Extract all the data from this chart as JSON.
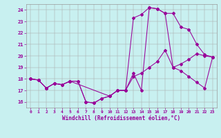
{
  "xlabel": "Windchill (Refroidissement éolien,°C)",
  "bg_color": "#c8f0f0",
  "line_color": "#990099",
  "xlim": [
    -0.5,
    23.5
  ],
  "ylim": [
    15.5,
    24.5
  ],
  "xticks": [
    0,
    1,
    2,
    3,
    4,
    5,
    6,
    7,
    8,
    9,
    10,
    11,
    12,
    13,
    14,
    15,
    16,
    17,
    18,
    19,
    20,
    21,
    22,
    23
  ],
  "yticks": [
    16,
    17,
    18,
    19,
    20,
    21,
    22,
    23,
    24
  ],
  "line1": {
    "x": [
      0,
      1,
      2,
      3,
      4,
      5,
      6,
      7,
      8,
      9,
      10,
      11,
      12,
      13,
      14,
      15,
      16,
      17,
      18,
      19,
      20,
      21,
      22,
      23
    ],
    "y": [
      18.0,
      17.9,
      17.2,
      17.6,
      17.5,
      17.8,
      17.8,
      16.0,
      15.9,
      16.3,
      16.5,
      17.0,
      17.0,
      18.5,
      17.0,
      24.2,
      24.1,
      23.7,
      19.0,
      18.7,
      18.2,
      17.7,
      17.2,
      19.9
    ]
  },
  "line2": {
    "x": [
      0,
      1,
      2,
      3,
      4,
      5,
      10,
      11,
      12,
      13,
      14,
      15,
      16,
      17,
      18,
      19,
      20,
      21,
      22,
      23
    ],
    "y": [
      18.0,
      17.9,
      17.2,
      17.6,
      17.5,
      17.8,
      16.5,
      17.0,
      17.0,
      23.3,
      23.6,
      24.2,
      24.1,
      23.7,
      23.7,
      22.5,
      22.3,
      21.0,
      20.1,
      19.9
    ]
  },
  "line3": {
    "x": [
      0,
      1,
      2,
      3,
      4,
      5,
      6,
      7,
      8,
      9,
      10,
      11,
      12,
      13,
      14,
      15,
      16,
      17,
      18,
      19,
      20,
      21,
      22,
      23
    ],
    "y": [
      18.0,
      17.9,
      17.2,
      17.6,
      17.5,
      17.8,
      17.8,
      16.0,
      15.9,
      16.3,
      16.5,
      17.0,
      17.0,
      18.2,
      18.5,
      19.0,
      19.5,
      20.5,
      19.0,
      19.3,
      19.7,
      20.2,
      20.0,
      19.9
    ]
  }
}
